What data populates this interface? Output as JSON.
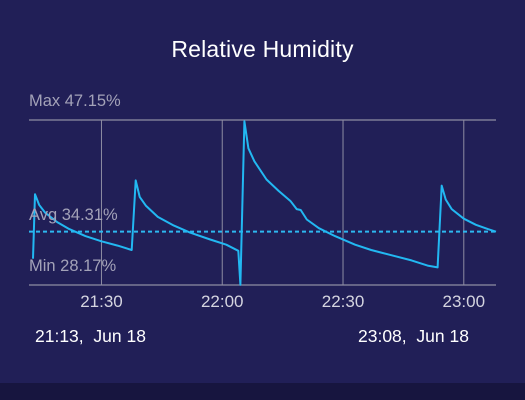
{
  "title": "Relative Humidity",
  "stats": {
    "max_label": "Max 47.15%",
    "avg_label": "Avg 34.31%",
    "min_label": "Min 28.17%"
  },
  "range": {
    "start": "21:13,  Jun 18",
    "end": "23:08,  Jun 18"
  },
  "colors": {
    "line": "#22b8f2",
    "avg_line": "#2db8f0",
    "grid": "#8e8da3",
    "background": "#211f57"
  },
  "chart_data": {
    "type": "line",
    "title": "Relative Humidity",
    "xlabel": "",
    "ylabel": "",
    "x_unit": "minutes",
    "x_range": [
      "21:13",
      "23:08"
    ],
    "ylim": [
      28.17,
      47.15
    ],
    "x_ticks": [
      {
        "label": "21:30",
        "x": 1290
      },
      {
        "label": "22:00",
        "x": 1320
      },
      {
        "label": "22:30",
        "x": 1350
      },
      {
        "label": "23:00",
        "x": 1380
      }
    ],
    "reference_lines": [
      {
        "name": "Max",
        "y": 47.15,
        "style": "solid"
      },
      {
        "name": "Avg",
        "y": 34.31,
        "style": "dashed"
      },
      {
        "name": "Min",
        "y": 28.17,
        "style": "solid"
      }
    ],
    "series": [
      {
        "values_x": [
          1273.0,
          1273.5,
          1274.5,
          1276,
          1279,
          1282,
          1286,
          1290,
          1294,
          1297.5,
          1298.5,
          1299.5,
          1301,
          1304,
          1308,
          1312,
          1317,
          1321,
          1324,
          1324.5,
          1325.5,
          1326.5,
          1328,
          1331,
          1334,
          1337,
          1338.5,
          1339.5,
          1341,
          1344,
          1348,
          1353,
          1357,
          1362,
          1367,
          1371,
          1373.5,
          1374.5,
          1375.5,
          1377,
          1380,
          1383,
          1386,
          1388
        ],
        "values_y": [
          31.2,
          38.6,
          37.4,
          36.5,
          35.4,
          34.6,
          33.8,
          33.2,
          32.7,
          32.2,
          40.2,
          38.3,
          37.3,
          36.0,
          35.0,
          34.2,
          33.4,
          32.8,
          32.1,
          28.2,
          47.0,
          43.9,
          42.4,
          40.3,
          39.0,
          37.8,
          36.9,
          36.8,
          35.7,
          34.7,
          33.8,
          32.8,
          32.2,
          31.6,
          31.0,
          30.4,
          30.2,
          39.6,
          38.0,
          36.9,
          35.8,
          35.1,
          34.6,
          34.3
        ]
      }
    ]
  }
}
